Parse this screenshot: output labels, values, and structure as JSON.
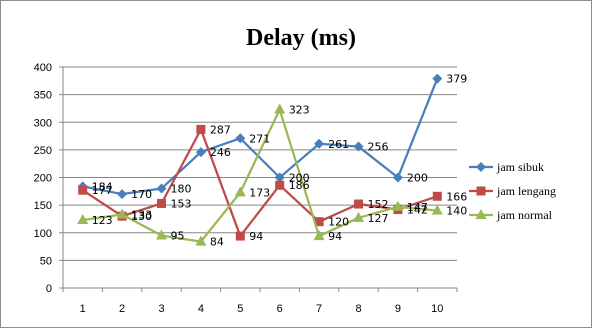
{
  "chart_data": {
    "type": "line",
    "title": "Delay (ms)",
    "xlabel": "",
    "ylabel": "",
    "categories": [
      "1",
      "2",
      "3",
      "4",
      "5",
      "6",
      "7",
      "8",
      "9",
      "10"
    ],
    "ylim": [
      0,
      400
    ],
    "yticks": [
      "0",
      "50",
      "100",
      "150",
      "200",
      "250",
      "300",
      "350",
      "400"
    ],
    "grid": "horizontal",
    "legend_position": "right",
    "series": [
      {
        "name": "jam sibuk",
        "color": "#4a7ebb",
        "marker": "diamond",
        "values": [
          184,
          170,
          180,
          246,
          271,
          200,
          261,
          256,
          200,
          379
        ]
      },
      {
        "name": "jam lengang",
        "color": "#be4b48",
        "marker": "square",
        "values": [
          177,
          130,
          153,
          287,
          94,
          186,
          120,
          152,
          142,
          166
        ]
      },
      {
        "name": "jam normal",
        "color": "#98b954",
        "marker": "triangle",
        "values": [
          123,
          133,
          95,
          84,
          173,
          323,
          94,
          127,
          147,
          140
        ]
      }
    ],
    "data_labels": [
      [
        "184",
        "170",
        "180",
        "246",
        "271",
        "200",
        "261",
        "256",
        "200",
        "379"
      ],
      [
        "177",
        "130",
        "153",
        "287",
        "94",
        "186",
        "120",
        "152",
        "142",
        "166"
      ],
      [
        "123",
        "133",
        "95",
        "84",
        "173",
        "323",
        "94",
        "127",
        "147",
        "140"
      ]
    ]
  }
}
